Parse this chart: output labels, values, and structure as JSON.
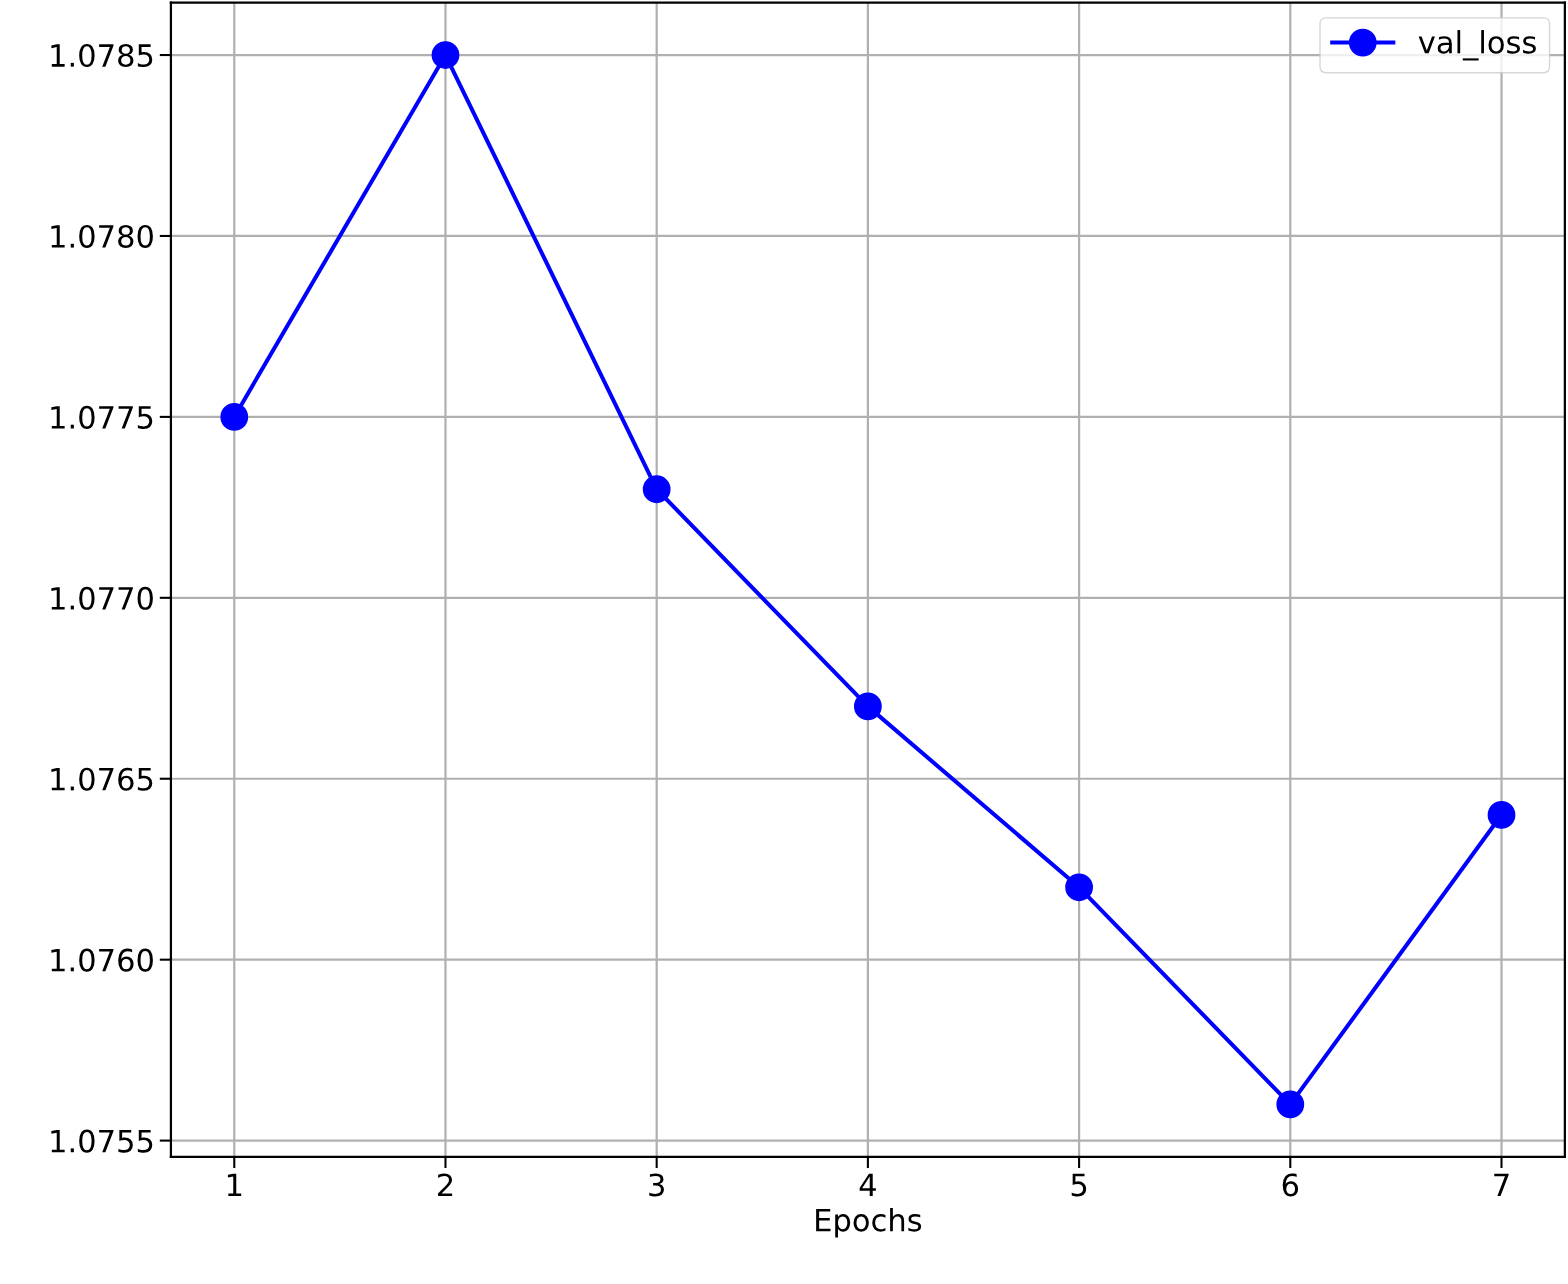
{
  "chart_data": {
    "type": "line",
    "xlabel": "Epochs",
    "x": [
      1,
      2,
      3,
      4,
      5,
      6,
      7
    ],
    "series": [
      {
        "name": "val_loss",
        "color": "#0000ff",
        "values": [
          1.0775,
          1.0785,
          1.0773,
          1.0767,
          1.0762,
          1.0756,
          1.0764
        ]
      }
    ],
    "xlim": [
      0.7,
      7.3
    ],
    "xticks": [
      1,
      2,
      3,
      4,
      5,
      6,
      7
    ],
    "ylim": [
      1.075455,
      1.078645
    ],
    "yticks": [
      {
        "value": 1.0755,
        "label": "1.0755"
      },
      {
        "value": 1.076,
        "label": "1.0760"
      },
      {
        "value": 1.0765,
        "label": "1.0765"
      },
      {
        "value": 1.077,
        "label": "1.0770"
      },
      {
        "value": 1.0775,
        "label": "1.0775"
      },
      {
        "value": 1.078,
        "label": "1.0780"
      },
      {
        "value": 1.0785,
        "label": "1.0785"
      }
    ],
    "grid": true,
    "legend": "top right",
    "marker": "circle",
    "line_style": "solid"
  }
}
